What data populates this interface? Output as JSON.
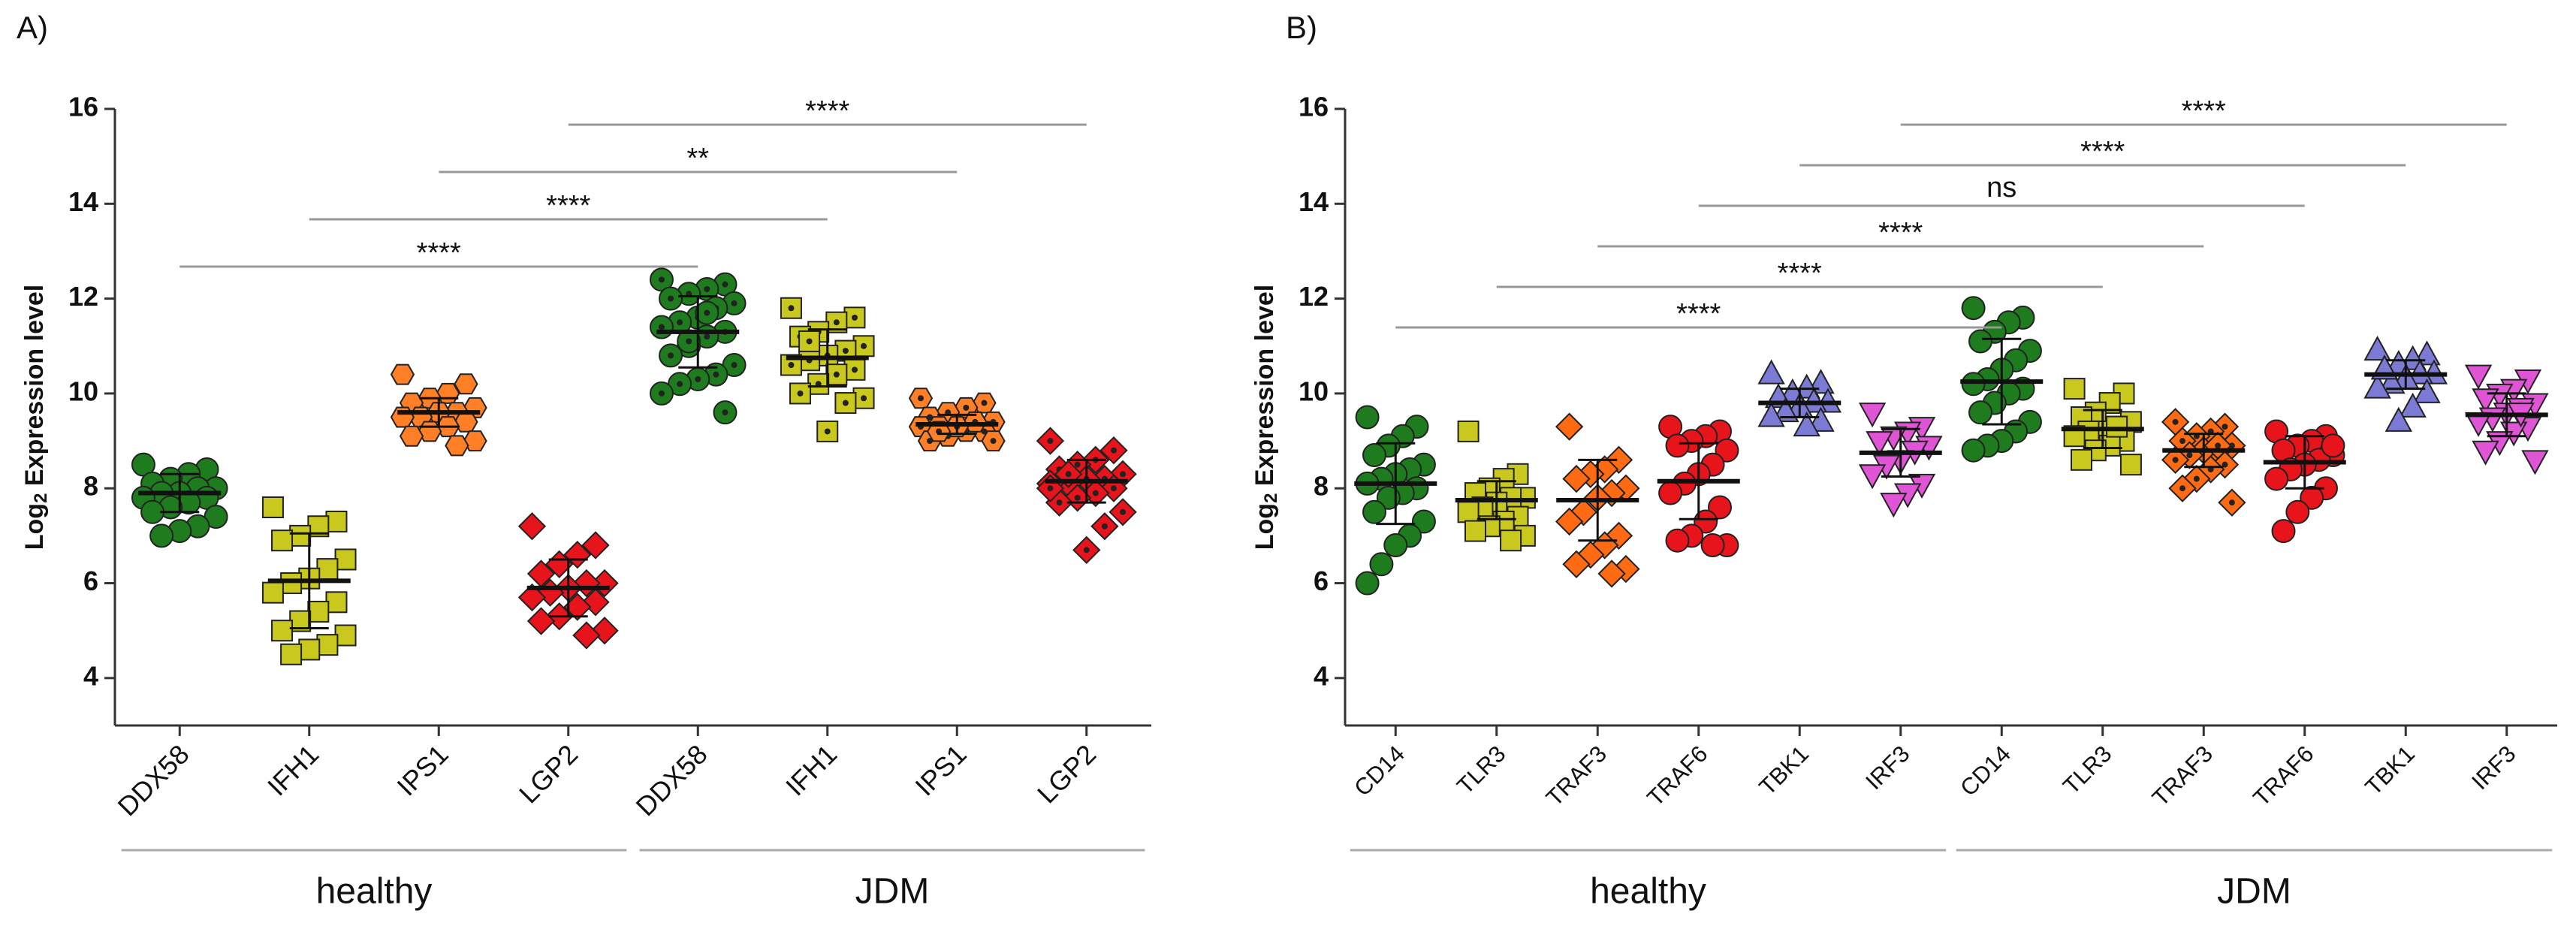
{
  "chart_data": [
    {
      "type": "dotplot",
      "title": "A)",
      "ylabel": [
        "Log",
        "2",
        " Expression level"
      ],
      "ylim": [
        3,
        16
      ],
      "yticks": [
        4,
        6,
        8,
        10,
        12,
        14,
        16
      ],
      "groups": [
        {
          "name": "healthy",
          "categories": [
            "DDX58",
            "IFH1",
            "IPS1",
            "LGP2"
          ]
        },
        {
          "name": "JDM",
          "categories": [
            "DDX58",
            "IFH1",
            "IPS1",
            "LGP2"
          ]
        }
      ],
      "series": [
        {
          "color": "#1e7b1e",
          "marker": "circle",
          "dotted": false,
          "mean": 7.9,
          "sd": 0.4,
          "values": [
            8.5,
            8.4,
            8.3,
            8.2,
            8.1,
            8.0,
            8.0,
            7.9,
            7.9,
            7.8,
            7.8,
            7.7,
            7.6,
            7.5,
            7.4,
            7.2,
            7.1,
            7.0
          ]
        },
        {
          "color": "#c8c81e",
          "marker": "square",
          "dotted": false,
          "mean": 6.05,
          "sd": 1.0,
          "values": [
            7.6,
            7.3,
            7.2,
            7.0,
            6.9,
            6.5,
            6.3,
            6.1,
            6.0,
            5.8,
            5.6,
            5.4,
            5.2,
            5.0,
            4.9,
            4.7,
            4.6,
            4.5
          ]
        },
        {
          "color": "#ff7f27",
          "marker": "hexagon",
          "dotted": false,
          "mean": 9.6,
          "sd": 0.3,
          "values": [
            10.4,
            10.2,
            10.0,
            9.9,
            9.8,
            9.7,
            9.6,
            9.6,
            9.5,
            9.5,
            9.4,
            9.3,
            9.2,
            9.1,
            9.0,
            8.9
          ]
        },
        {
          "color": "#e8141c",
          "marker": "diamond",
          "dotted": false,
          "mean": 5.9,
          "sd": 0.6,
          "values": [
            7.2,
            6.8,
            6.6,
            6.4,
            6.2,
            6.0,
            6.0,
            5.9,
            5.8,
            5.7,
            5.6,
            5.5,
            5.3,
            5.2,
            5.0,
            4.9
          ]
        },
        {
          "color": "#1e7b1e",
          "marker": "circle",
          "dotted": true,
          "mean": 11.3,
          "sd": 0.75,
          "values": [
            12.4,
            12.3,
            12.2,
            12.1,
            12.0,
            11.9,
            11.8,
            11.6,
            11.5,
            11.4,
            11.3,
            11.2,
            11.0,
            10.8,
            10.6,
            10.4,
            10.3,
            10.2,
            10.0,
            9.6,
            11.7,
            11.1
          ]
        },
        {
          "color": "#c8c81e",
          "marker": "square",
          "dotted": true,
          "mean": 10.75,
          "sd": 0.6,
          "values": [
            11.8,
            11.6,
            11.5,
            11.3,
            11.2,
            11.0,
            10.9,
            10.8,
            10.7,
            10.6,
            10.5,
            10.4,
            10.2,
            10.0,
            9.9,
            9.8,
            9.2,
            11.1
          ]
        },
        {
          "color": "#ff7f27",
          "marker": "hexagon",
          "dotted": true,
          "mean": 9.35,
          "sd": 0.2,
          "values": [
            9.9,
            9.8,
            9.7,
            9.6,
            9.5,
            9.4,
            9.4,
            9.3,
            9.3,
            9.3,
            9.2,
            9.2,
            9.1,
            9.0,
            9.0,
            9.4,
            9.3,
            9.2
          ]
        },
        {
          "color": "#e8141c",
          "marker": "diamond",
          "dotted": true,
          "mean": 8.15,
          "sd": 0.45,
          "values": [
            9.0,
            8.8,
            8.6,
            8.5,
            8.4,
            8.3,
            8.2,
            8.2,
            8.1,
            8.1,
            8.0,
            7.9,
            7.8,
            7.7,
            7.5,
            7.2,
            6.7,
            8.3,
            8.0
          ]
        }
      ],
      "comparisons": [
        {
          "from": 0,
          "to": 4,
          "label": "****"
        },
        {
          "from": 1,
          "to": 5,
          "label": "****"
        },
        {
          "from": 2,
          "to": 6,
          "label": "**"
        },
        {
          "from": 3,
          "to": 7,
          "label": "****"
        }
      ]
    },
    {
      "type": "dotplot",
      "title": "B)",
      "ylabel": [
        "Log",
        "2",
        " Expression level"
      ],
      "ylim": [
        3,
        16
      ],
      "yticks": [
        4,
        6,
        8,
        10,
        12,
        14,
        16
      ],
      "groups": [
        {
          "name": "healthy",
          "categories": [
            "CD14",
            "TLR3",
            "TRAF3",
            "TRAF6",
            "TBK1",
            "IRF3"
          ]
        },
        {
          "name": "JDM",
          "categories": [
            "CD14",
            "TLR3",
            "TRAF3",
            "TRAF6",
            "TBK1",
            "IRF3"
          ]
        }
      ],
      "series": [
        {
          "color": "#1e7b1e",
          "marker": "circle",
          "dotted": false,
          "mean": 8.1,
          "sd": 0.85,
          "values": [
            9.5,
            9.3,
            9.1,
            8.9,
            8.7,
            8.5,
            8.4,
            8.3,
            8.2,
            8.1,
            8.0,
            7.9,
            7.8,
            7.5,
            7.3,
            7.0,
            6.8,
            6.4,
            6.0
          ]
        },
        {
          "color": "#c8c81e",
          "marker": "square",
          "dotted": false,
          "mean": 7.75,
          "sd": 0.4,
          "values": [
            9.2,
            8.3,
            8.2,
            8.0,
            7.9,
            7.8,
            7.8,
            7.7,
            7.6,
            7.5,
            7.4,
            7.3,
            7.2,
            7.1,
            7.0,
            6.9
          ]
        },
        {
          "color": "#ff6a13",
          "marker": "diamond",
          "dotted": false,
          "mean": 7.75,
          "sd": 0.85,
          "values": [
            9.3,
            8.6,
            8.4,
            8.3,
            8.2,
            8.0,
            7.9,
            7.8,
            7.5,
            7.3,
            7.0,
            6.8,
            6.6,
            6.4,
            6.3,
            6.2
          ]
        },
        {
          "color": "#e8141c",
          "marker": "circle",
          "dotted": false,
          "mean": 8.15,
          "sd": 0.8,
          "values": [
            9.3,
            9.2,
            9.1,
            9.0,
            8.9,
            8.8,
            8.5,
            8.3,
            8.1,
            7.9,
            7.6,
            7.3,
            7.0,
            6.9,
            6.8,
            6.8
          ]
        },
        {
          "color": "#7b7bd6",
          "marker": "triangle-up",
          "dotted": false,
          "mean": 9.8,
          "sd": 0.3,
          "values": [
            10.4,
            10.2,
            10.1,
            10.0,
            9.9,
            9.8,
            9.8,
            9.7,
            9.6,
            9.5,
            9.4,
            9.3
          ]
        },
        {
          "color": "#e055d5",
          "marker": "triangle-down",
          "dotted": false,
          "mean": 8.75,
          "sd": 0.5,
          "values": [
            9.6,
            9.3,
            9.2,
            9.1,
            9.0,
            8.9,
            8.8,
            8.6,
            8.5,
            8.3,
            8.1,
            7.9,
            7.7
          ]
        },
        {
          "color": "#1e7b1e",
          "marker": "circle",
          "dotted": false,
          "mean": 10.25,
          "sd": 0.9,
          "values": [
            11.8,
            11.6,
            11.5,
            11.3,
            11.1,
            10.9,
            10.7,
            10.5,
            10.3,
            10.2,
            10.1,
            10.0,
            9.8,
            9.6,
            9.4,
            9.2,
            9.0,
            8.9,
            8.8
          ]
        },
        {
          "color": "#c8c81e",
          "marker": "square",
          "dotted": false,
          "mean": 9.25,
          "sd": 0.4,
          "values": [
            10.1,
            10.0,
            9.8,
            9.6,
            9.5,
            9.4,
            9.3,
            9.2,
            9.2,
            9.1,
            9.0,
            8.9,
            8.8,
            8.6,
            8.5,
            9.3
          ]
        },
        {
          "color": "#ff6a13",
          "marker": "diamond",
          "dotted": true,
          "mean": 8.8,
          "sd": 0.35,
          "values": [
            9.4,
            9.3,
            9.2,
            9.1,
            9.0,
            8.9,
            8.8,
            8.8,
            8.7,
            8.6,
            8.5,
            8.4,
            8.2,
            8.0,
            7.7,
            8.9
          ]
        },
        {
          "color": "#e8141c",
          "marker": "circle",
          "dotted": false,
          "mean": 8.55,
          "sd": 0.55,
          "values": [
            9.2,
            9.1,
            9.0,
            8.9,
            8.8,
            8.7,
            8.6,
            8.5,
            8.4,
            8.2,
            8.0,
            7.8,
            7.5,
            7.1,
            8.9
          ]
        },
        {
          "color": "#7b7bd6",
          "marker": "triangle-up",
          "dotted": false,
          "mean": 10.4,
          "sd": 0.3,
          "values": [
            10.9,
            10.8,
            10.7,
            10.6,
            10.5,
            10.4,
            10.4,
            10.3,
            10.2,
            10.1,
            10.0,
            9.7,
            9.4,
            10.5
          ]
        },
        {
          "color": "#e055d5",
          "marker": "triangle-down",
          "dotted": false,
          "mean": 9.55,
          "sd": 0.45,
          "values": [
            10.4,
            10.3,
            10.1,
            10.0,
            9.9,
            9.8,
            9.7,
            9.6,
            9.5,
            9.4,
            9.3,
            9.2,
            9.0,
            8.8,
            8.6,
            9.6
          ]
        }
      ],
      "comparisons": [
        {
          "from": 0,
          "to": 6,
          "label": "****"
        },
        {
          "from": 1,
          "to": 7,
          "label": "****"
        },
        {
          "from": 2,
          "to": 8,
          "label": "****"
        },
        {
          "from": 3,
          "to": 9,
          "label": "ns"
        },
        {
          "from": 4,
          "to": 10,
          "label": "****"
        },
        {
          "from": 5,
          "to": 11,
          "label": "****"
        }
      ]
    }
  ]
}
